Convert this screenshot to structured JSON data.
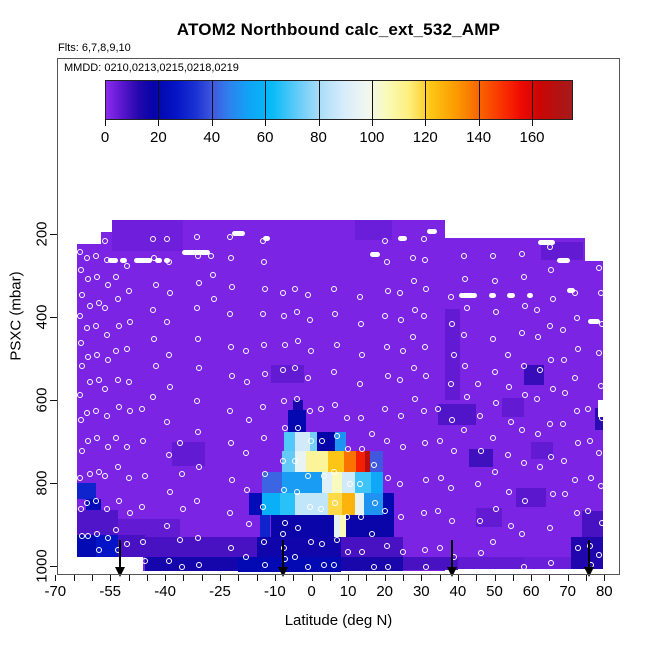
{
  "title": "ATOM2 Northbound calc_ext_532_AMP",
  "flights_note": "Flts: 6,7,8,9,10",
  "legend_note": "MMDD: 0210,0213,0215,0218,0219",
  "colorbar": {
    "ticks": [
      0,
      20,
      40,
      60,
      80,
      100,
      120,
      140,
      160
    ],
    "vmax": 175,
    "stops": [
      [
        0,
        "#8C2BEE"
      ],
      [
        6,
        "#5A17CE"
      ],
      [
        12,
        "#2408AE"
      ],
      [
        18,
        "#0404A8"
      ],
      [
        26,
        "#0414C6"
      ],
      [
        34,
        "#1C33D4"
      ],
      [
        40,
        "#4158DE"
      ],
      [
        46,
        "#2E80EE"
      ],
      [
        54,
        "#10A5F6"
      ],
      [
        62,
        "#04BAF8"
      ],
      [
        72,
        "#64CBF8"
      ],
      [
        80,
        "#A8DCF8"
      ],
      [
        90,
        "#DAEDFA"
      ],
      [
        98,
        "#F0F7F0"
      ],
      [
        106,
        "#FAFAB6"
      ],
      [
        114,
        "#FEEE7C"
      ],
      [
        122,
        "#FDC616"
      ],
      [
        132,
        "#FB9800"
      ],
      [
        142,
        "#F95A00"
      ],
      [
        150,
        "#F92A00"
      ],
      [
        156,
        "#EE0A02"
      ],
      [
        163,
        "#CC0505"
      ],
      [
        170,
        "#B21212"
      ],
      [
        175,
        "#A61A1A"
      ]
    ]
  },
  "axes": {
    "x": {
      "label": "Latitude (deg N)",
      "tick_labels": [
        -70,
        -55,
        -40,
        -25,
        -10,
        0,
        10,
        20,
        30,
        40,
        50,
        60,
        70,
        80
      ],
      "minor_step": 5,
      "range": [
        -70,
        84
      ]
    },
    "y": {
      "label": "PSXC (mbar)",
      "tick_labels": [
        200,
        400,
        600,
        800,
        1000
      ],
      "range": [
        160,
        1020
      ]
    }
  },
  "chart_data": {
    "type": "heatmap",
    "title": "ATOM2 Northbound calc_ext_532_AMP",
    "xlabel": "Latitude (deg N)",
    "ylabel": "PSXC (mbar)",
    "zlabel": "calc_ext_532_AMP",
    "zlim": [
      0,
      175
    ],
    "grid": false,
    "cells": [
      [
        -64.1,
        -57.5,
        224,
        978,
        2
      ],
      [
        -57.5,
        -54.5,
        195,
        978,
        2
      ],
      [
        -54.5,
        36.5,
        166,
        978,
        2
      ],
      [
        -46,
        36.5,
        978,
        1012,
        2
      ],
      [
        36.5,
        74.7,
        210,
        1008,
        2
      ],
      [
        74.7,
        79.6,
        265,
        1008,
        2
      ],
      [
        -54.5,
        -35,
        166,
        240,
        3.5
      ],
      [
        12,
        22,
        166,
        215,
        4
      ],
      [
        62.8,
        74.3,
        219,
        263,
        5
      ],
      [
        36.5,
        40.5,
        380,
        600,
        5
      ],
      [
        34.5,
        45,
        610,
        660,
        7
      ],
      [
        43,
        49.5,
        718,
        762,
        9
      ],
      [
        58,
        63.5,
        516,
        564,
        10
      ],
      [
        52,
        58,
        594,
        640,
        5
      ],
      [
        60,
        66,
        700,
        742,
        5
      ],
      [
        77.5,
        79.6,
        620,
        672,
        11
      ],
      [
        -38,
        -29,
        700,
        760,
        5
      ],
      [
        -11,
        -2,
        515,
        560,
        5
      ],
      [
        45,
        52,
        860,
        905,
        5
      ],
      [
        56,
        64,
        812,
        858,
        6
      ],
      [
        -53,
        -36,
        886,
        930,
        5
      ],
      [
        -64.1,
        -53,
        866,
        925,
        7
      ],
      [
        -64.1,
        -59,
        800,
        838,
        30
      ],
      [
        -61.5,
        -57.5,
        838,
        866,
        22
      ],
      [
        -64.1,
        -53,
        925,
        978,
        21
      ],
      [
        -59,
        -53,
        925,
        978,
        26
      ],
      [
        -53,
        -45.5,
        925,
        978,
        8
      ],
      [
        -45.5,
        -15,
        930,
        978,
        8
      ],
      [
        -15,
        8,
        930,
        978,
        16
      ],
      [
        8,
        25,
        930,
        978,
        8
      ],
      [
        -45.5,
        -20,
        978,
        1012,
        15
      ],
      [
        -20,
        8,
        978,
        1014,
        21
      ],
      [
        8,
        25,
        978,
        1012,
        14
      ],
      [
        25,
        40,
        978,
        1010,
        8
      ],
      [
        40,
        58,
        978,
        1008,
        5
      ],
      [
        58,
        71,
        978,
        1008,
        4
      ],
      [
        71,
        79.6,
        930,
        1008,
        13
      ],
      [
        74,
        79.6,
        868,
        930,
        8
      ],
      [
        -5,
        -2.2,
        600,
        624,
        14
      ],
      [
        -6.4,
        -1.6,
        624,
        678,
        20
      ],
      [
        -7.5,
        -4.5,
        676,
        726,
        70
      ],
      [
        -4.5,
        -0.5,
        676,
        726,
        88
      ],
      [
        -0.5,
        1.6,
        676,
        726,
        74
      ],
      [
        1.6,
        6.3,
        676,
        726,
        18
      ],
      [
        6.3,
        9.5,
        676,
        726,
        50
      ],
      [
        -8,
        -4.5,
        724,
        776,
        72
      ],
      [
        -4.5,
        -1.5,
        724,
        776,
        95
      ],
      [
        -1.5,
        4.5,
        724,
        776,
        110
      ],
      [
        4.5,
        9,
        724,
        776,
        122
      ],
      [
        9,
        12.2,
        724,
        776,
        138
      ],
      [
        12.2,
        14.5,
        724,
        776,
        152
      ],
      [
        14.5,
        16.1,
        724,
        776,
        168
      ],
      [
        16.1,
        19.5,
        724,
        776,
        40
      ],
      [
        -13.5,
        -8,
        774,
        826,
        42
      ],
      [
        -8,
        3,
        774,
        826,
        52
      ],
      [
        3,
        5.5,
        774,
        826,
        92
      ],
      [
        5.5,
        8.3,
        774,
        826,
        105
      ],
      [
        8.3,
        11.8,
        774,
        826,
        88
      ],
      [
        11.8,
        16.3,
        774,
        826,
        68
      ],
      [
        16.3,
        19.5,
        774,
        826,
        55
      ],
      [
        -17,
        -13.5,
        824,
        878,
        22
      ],
      [
        -13.5,
        -8.5,
        824,
        878,
        58
      ],
      [
        -8.5,
        -4.5,
        824,
        878,
        66
      ],
      [
        -4.5,
        4.5,
        824,
        878,
        85
      ],
      [
        4.5,
        8.3,
        824,
        878,
        118
      ],
      [
        8.3,
        11.8,
        824,
        878,
        126
      ],
      [
        11.8,
        14.3,
        824,
        878,
        95
      ],
      [
        14.3,
        19.5,
        824,
        878,
        50
      ],
      [
        19.5,
        22.5,
        824,
        878,
        20
      ],
      [
        -14,
        -11.2,
        876,
        930,
        30
      ],
      [
        -11.2,
        6.2,
        876,
        930,
        17
      ],
      [
        6.2,
        7.8,
        876,
        930,
        95
      ],
      [
        7.8,
        9.3,
        876,
        930,
        106
      ],
      [
        9.3,
        22.5,
        876,
        930,
        17
      ]
    ],
    "holes": [
      [
        78.3,
        79.6,
        600,
        640
      ]
    ],
    "level_tracks": [
      [
        -58.6,
        -55.5,
        185
      ],
      [
        -55.6,
        -52.8,
        265
      ],
      [
        -52.2,
        -50.4,
        265
      ],
      [
        -48.5,
        -43.6,
        265
      ],
      [
        -42.8,
        -40.9,
        265
      ],
      [
        -40.3,
        -38.6,
        265
      ],
      [
        -35.4,
        -27.7,
        245
      ],
      [
        -21.8,
        -18.1,
        198
      ],
      [
        -13.3,
        -11.4,
        212
      ],
      [
        16,
        18.8,
        250
      ],
      [
        23.5,
        26.2,
        212
      ],
      [
        31.5,
        34.3,
        194
      ],
      [
        61.8,
        66.5,
        220
      ],
      [
        67,
        70.5,
        265
      ],
      [
        69.8,
        71.9,
        335
      ],
      [
        75.5,
        78.9,
        412
      ],
      [
        40.2,
        45.3,
        347
      ],
      [
        48.5,
        50.3,
        347
      ],
      [
        53.5,
        55.6,
        347
      ],
      [
        59,
        60.4,
        347
      ]
    ],
    "profile_markers": [
      {
        "lat": -63,
        "p": [
          240,
          290,
          345,
          400,
          460,
          520,
          585,
          650,
          720,
          790,
          860,
          930
        ]
      },
      {
        "lat": -61,
        "p": [
          255,
          310,
          370,
          430,
          495,
          560,
          630,
          700,
          775,
          850,
          925
        ]
      },
      {
        "lat": -58.5,
        "p": [
          250,
          305,
          365,
          425,
          490,
          555,
          625,
          695,
          770,
          845,
          920,
          965
        ]
      },
      {
        "lat": -56,
        "p": [
          215,
          265,
          320,
          380,
          440,
          505,
          570,
          640,
          710,
          785,
          860,
          935
        ]
      },
      {
        "lat": -53,
        "p": [
          300,
          360,
          420,
          485,
          550,
          620,
          690,
          765,
          840,
          915,
          960
        ]
      },
      {
        "lat": -50,
        "p": [
          275,
          340,
          410,
          480,
          555,
          630,
          710,
          790,
          870,
          950
        ]
      },
      {
        "lat": -46,
        "p": [
          620,
          700,
          780,
          860,
          940,
          990
        ]
      },
      {
        "lat": -43,
        "p": [
          210,
          260,
          320,
          385,
          450,
          520,
          590
        ]
      },
      {
        "lat": -39,
        "p": [
          210,
          270,
          340,
          415,
          490,
          570,
          650,
          735,
          820,
          905,
          985
        ]
      },
      {
        "lat": -35.5,
        "p": [
          700,
          780,
          860,
          940,
          1000
        ]
      },
      {
        "lat": -31,
        "p": [
          205,
          255,
          315,
          380,
          450,
          525,
          600,
          680,
          760,
          845,
          930,
          1000
        ]
      },
      {
        "lat": -27,
        "p": [
          250,
          300,
          355
        ]
      },
      {
        "lat": -22,
        "p": [
          205,
          260,
          325,
          395,
          470,
          545,
          625,
          705,
          790,
          875,
          955
        ]
      },
      {
        "lat": -17.5,
        "p": [
          480,
          560,
          645,
          730,
          815,
          900,
          975
        ]
      },
      {
        "lat": -13,
        "p": [
          215,
          270,
          330,
          395,
          465,
          540,
          615,
          695,
          775,
          860,
          940,
          1000
        ]
      },
      {
        "lat": -7.5,
        "p": [
          340,
          400,
          465,
          530,
          600,
          670,
          745,
          820,
          895,
          925,
          955,
          985
        ]
      },
      {
        "lat": -4,
        "p": [
          330,
          390,
          455,
          525,
          595,
          670,
          745,
          825,
          905,
          980
        ]
      },
      {
        "lat": -0.5,
        "p": [
          345,
          410,
          480,
          550,
          625,
          700,
          780,
          860,
          940,
          1005
        ]
      },
      {
        "lat": 3,
        "p": [
          620,
          700,
          780,
          865,
          945,
          1000
        ]
      },
      {
        "lat": 6.5,
        "p": [
          330,
          395,
          465,
          535,
          610,
          690,
          770,
          850,
          935,
          1000
        ]
      },
      {
        "lat": 10,
        "p": [
          640,
          720,
          800,
          885,
          965
        ]
      },
      {
        "lat": 13.5,
        "p": [
          350,
          420,
          490,
          565,
          640,
          720,
          800,
          885,
          965
        ]
      },
      {
        "lat": 17,
        "p": [
          680,
          760,
          845,
          925,
          1000
        ]
      },
      {
        "lat": 20.5,
        "p": [
          215,
          270,
          335,
          400,
          470,
          545,
          620,
          700,
          785,
          870,
          950,
          1005
        ]
      },
      {
        "lat": 24.5,
        "p": [
          340,
          410,
          480,
          555,
          635,
          715,
          800,
          885,
          965
        ]
      },
      {
        "lat": 28,
        "p": [
          255,
          315,
          380,
          450,
          520,
          600
        ]
      },
      {
        "lat": 31,
        "p": [
          210,
          265,
          330,
          400,
          470,
          545,
          625,
          705,
          790,
          875,
          960,
          1005
        ]
      },
      {
        "lat": 35,
        "p": [
          620,
          700,
          785,
          870,
          955
        ]
      },
      {
        "lat": 38.5,
        "p": [
          350,
          420,
          490,
          565,
          645,
          725,
          810,
          895,
          975
        ]
      },
      {
        "lat": 42,
        "p": [
          250,
          310,
          375,
          445,
          515,
          595,
          670
        ]
      },
      {
        "lat": 46,
        "p": [
          560,
          640,
          720,
          805,
          890,
          970
        ]
      },
      {
        "lat": 50,
        "p": [
          250,
          315,
          385,
          455,
          530,
          610,
          690,
          775,
          860,
          945
        ]
      },
      {
        "lat": 54,
        "p": [
          490,
          570,
          650,
          735,
          820,
          905
        ]
      },
      {
        "lat": 58,
        "p": [
          245,
          305,
          370,
          440,
          515,
          590,
          670,
          755,
          840,
          925,
          1000
        ]
      },
      {
        "lat": 62,
        "p": [
          380,
          450,
          525,
          600,
          680,
          765
        ]
      },
      {
        "lat": 65.5,
        "p": [
          230,
          290,
          355,
          425,
          500,
          575,
          655,
          740,
          825,
          910,
          990
        ]
      },
      {
        "lat": 69,
        "p": [
          430,
          505,
          580,
          660,
          745,
          830
        ]
      },
      {
        "lat": 72.5,
        "p": [
          340,
          405,
          475,
          550,
          625,
          705,
          790,
          875,
          955
        ]
      },
      {
        "lat": 76,
        "p": [
          620,
          700,
          785,
          870,
          950,
          1000
        ]
      },
      {
        "lat": 79,
        "p": [
          280,
          345,
          415,
          490,
          565,
          645,
          725,
          810,
          895,
          975
        ]
      }
    ],
    "event_arrows_lat": [
      -52.2,
      -7.8,
      38.5,
      75.8
    ]
  }
}
